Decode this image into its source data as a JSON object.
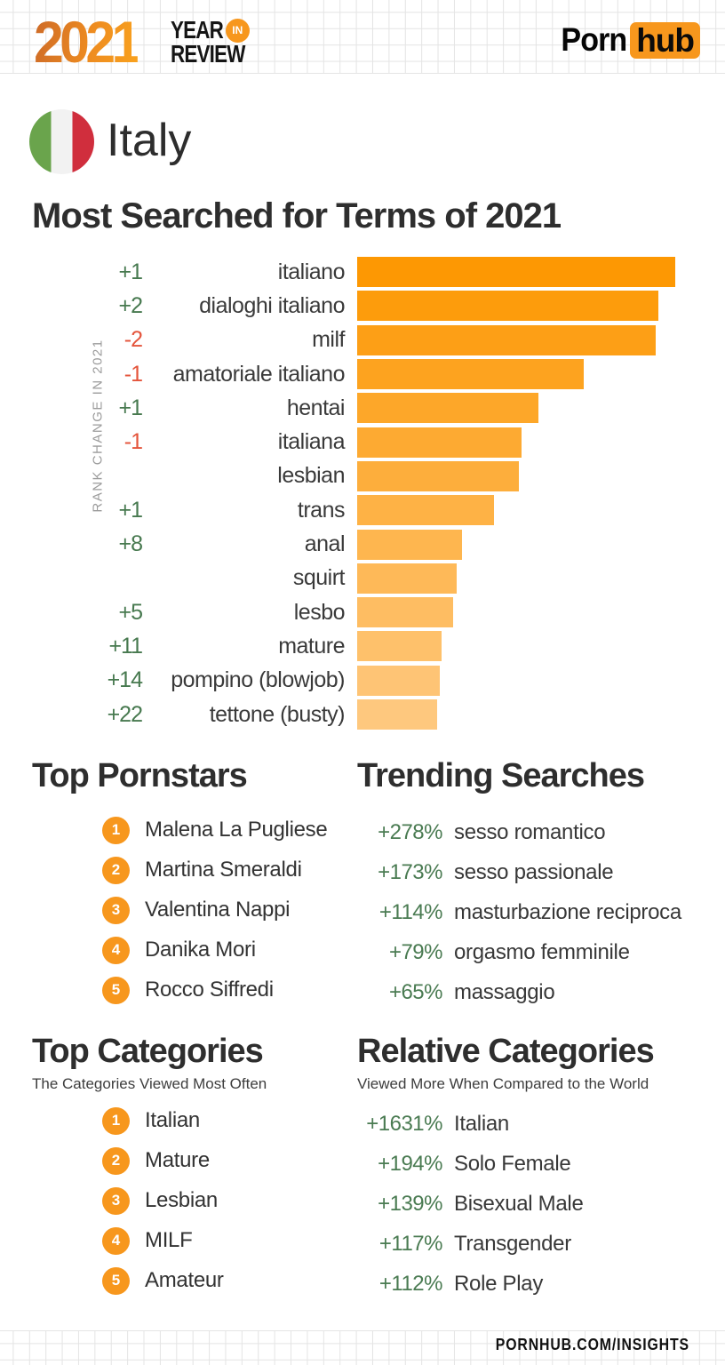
{
  "header": {
    "logo_year": "2021",
    "logo_word1": "YEAR",
    "logo_in": "IN",
    "logo_word2": "REVIEW",
    "brand_part1": "Porn",
    "brand_part2": "hub"
  },
  "country": {
    "name": "Italy",
    "flag_green": "#6aa44c",
    "flag_white": "#f2f2f2",
    "flag_red": "#d02e3d"
  },
  "page_title": "Most Searched for Terms of 2021",
  "chart_data": {
    "type": "bar",
    "orientation": "horizontal",
    "title": "Most Searched for Terms of 2021",
    "axis_label": "RANK CHANGE IN 2021",
    "bar_color_start": "#fd9803",
    "bar_color_end": "#fec87e",
    "rank_up_color": "#47794f",
    "rank_down_color": "#e4543b",
    "xlim": [
      0,
      100
    ],
    "value_unit": "relative search volume, % of top term",
    "rows": [
      {
        "term": "italiano",
        "rank_change": "+1",
        "value": 100
      },
      {
        "term": "dialoghi italiano",
        "rank_change": "+2",
        "value": 94.7
      },
      {
        "term": "milf",
        "rank_change": "-2",
        "value": 93.9
      },
      {
        "term": "amatoriale italiano",
        "rank_change": "-1",
        "value": 71.2
      },
      {
        "term": "hentai",
        "rank_change": "+1",
        "value": 57.0
      },
      {
        "term": "italiana",
        "rank_change": "-1",
        "value": 51.7
      },
      {
        "term": "lesbian",
        "rank_change": "",
        "value": 50.8
      },
      {
        "term": "trans",
        "rank_change": "+1",
        "value": 43.0
      },
      {
        "term": "anal",
        "rank_change": "+8",
        "value": 33.0
      },
      {
        "term": "squirt",
        "rank_change": "",
        "value": 31.3
      },
      {
        "term": "lesbo",
        "rank_change": "+5",
        "value": 30.2
      },
      {
        "term": "mature",
        "rank_change": "+11",
        "value": 26.5
      },
      {
        "term": "pompino (blowjob)",
        "rank_change": "+14",
        "value": 26.0
      },
      {
        "term": "tettone (busty)",
        "rank_change": "+22",
        "value": 25.1
      }
    ]
  },
  "top_pornstars": {
    "title": "Top Pornstars",
    "items": [
      {
        "rank": "1",
        "name": "Malena La Pugliese"
      },
      {
        "rank": "2",
        "name": "Martina Smeraldi"
      },
      {
        "rank": "3",
        "name": "Valentina Nappi"
      },
      {
        "rank": "4",
        "name": "Danika Mori"
      },
      {
        "rank": "5",
        "name": "Rocco Siffredi"
      }
    ]
  },
  "trending_searches": {
    "title": "Trending Searches",
    "pct_color": "#4a7b52",
    "items": [
      {
        "pct": "+278%",
        "term": "sesso romantico"
      },
      {
        "pct": "+173%",
        "term": "sesso passionale"
      },
      {
        "pct": "+114%",
        "term": "masturbazione reciproca"
      },
      {
        "pct": "+79%",
        "term": "orgasmo femminile"
      },
      {
        "pct": "+65%",
        "term": "massaggio"
      }
    ]
  },
  "top_categories": {
    "title": "Top Categories",
    "subtitle": "The Categories Viewed Most Often",
    "items": [
      {
        "rank": "1",
        "name": "Italian"
      },
      {
        "rank": "2",
        "name": "Mature"
      },
      {
        "rank": "3",
        "name": "Lesbian"
      },
      {
        "rank": "4",
        "name": "MILF"
      },
      {
        "rank": "5",
        "name": "Amateur"
      }
    ]
  },
  "relative_categories": {
    "title": "Relative Categories",
    "subtitle": "Viewed More When Compared to the World",
    "pct_color": "#4a7b52",
    "items": [
      {
        "pct": "+1631%",
        "term": "Italian"
      },
      {
        "pct": "+194%",
        "term": "Solo Female"
      },
      {
        "pct": "+139%",
        "term": "Bisexual Male"
      },
      {
        "pct": "+117%",
        "term": "Transgender"
      },
      {
        "pct": "+112%",
        "term": "Role Play"
      }
    ]
  },
  "footer": {
    "site": "PORNHUB.COM/INSIGHTS"
  },
  "colors": {
    "accent_orange": "#f7971d",
    "grid_line": "#e4e4e4",
    "heading": "#2e2e2e"
  }
}
